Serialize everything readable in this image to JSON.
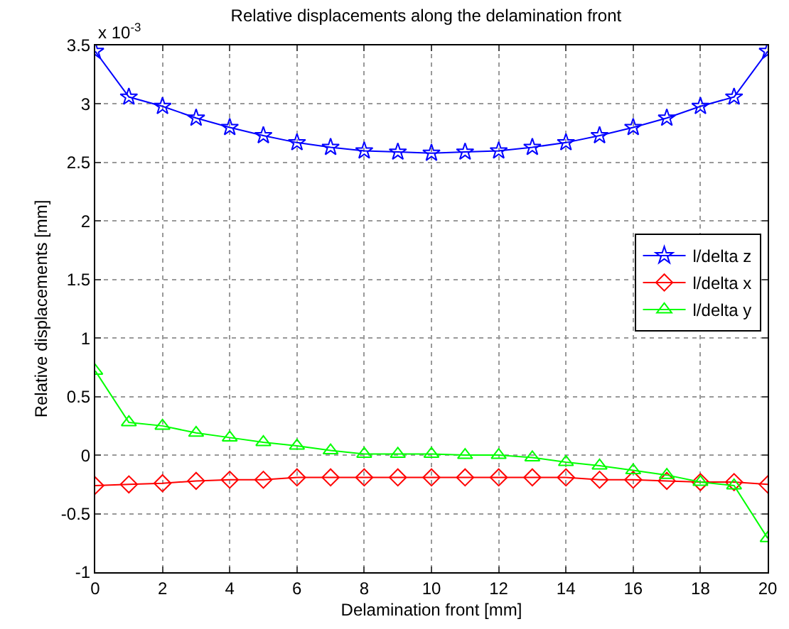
{
  "chart_data": {
    "type": "line",
    "title": "Relative displacements along the delamination front",
    "xlabel": "Delamination front [mm]",
    "ylabel": "Relative displacements [mm]",
    "annotations": [
      "x 10$^{-3}$"
    ],
    "x": [
      0,
      1,
      2,
      3,
      4,
      5,
      6,
      7,
      8,
      9,
      10,
      11,
      12,
      13,
      14,
      15,
      16,
      17,
      18,
      19,
      20
    ],
    "series": [
      {
        "name": "l/delta z",
        "color": "#0000ff",
        "marker": "star",
        "values": [
          3.45,
          3.06,
          2.98,
          2.88,
          2.8,
          2.73,
          2.67,
          2.63,
          2.6,
          2.59,
          2.58,
          2.59,
          2.6,
          2.63,
          2.67,
          2.73,
          2.8,
          2.88,
          2.98,
          3.06,
          3.45
        ]
      },
      {
        "name": "l/delta x",
        "color": "#ff0000",
        "marker": "diamond",
        "values": [
          -0.26,
          -0.25,
          -0.24,
          -0.22,
          -0.21,
          -0.21,
          -0.19,
          -0.19,
          -0.19,
          -0.19,
          -0.19,
          -0.19,
          -0.19,
          -0.19,
          -0.19,
          -0.21,
          -0.21,
          -0.22,
          -0.23,
          -0.23,
          -0.25
        ]
      },
      {
        "name": "l/delta y",
        "color": "#00ff00",
        "marker": "triangle",
        "values": [
          0.72,
          0.28,
          0.25,
          0.19,
          0.15,
          0.11,
          0.08,
          0.04,
          0.01,
          0.01,
          0.01,
          0.0,
          0.0,
          -0.02,
          -0.06,
          -0.09,
          -0.13,
          -0.17,
          -0.23,
          -0.26,
          -0.71
        ]
      }
    ],
    "xlim": [
      0,
      20
    ],
    "xticks": [
      0,
      2,
      4,
      6,
      8,
      10,
      12,
      14,
      16,
      18,
      20
    ],
    "ylim": [
      -1,
      3.5
    ],
    "yticks": [
      -1,
      -0.5,
      0,
      0.5,
      1,
      1.5,
      2,
      2.5,
      3,
      3.5
    ],
    "grid": true,
    "legend": "right",
    "line_style": "solid"
  }
}
